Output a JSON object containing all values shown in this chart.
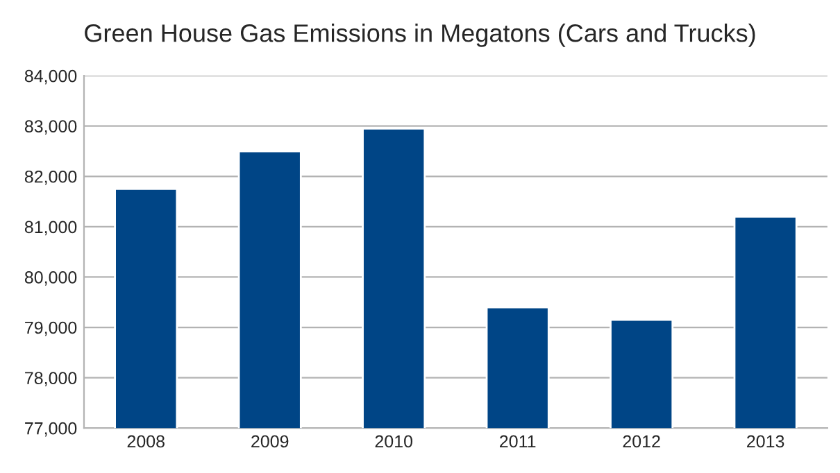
{
  "chart_data": {
    "type": "bar",
    "title": "Green House Gas Emissions in Megatons (Cars and Trucks)",
    "categories": [
      "2008",
      "2009",
      "2010",
      "2011",
      "2012",
      "2013"
    ],
    "values": [
      81750,
      82500,
      82950,
      79400,
      79150,
      81200
    ],
    "color": "#004586",
    "ylim": [
      77000,
      84000
    ],
    "yticks": [
      {
        "value": 77000,
        "label": "77,000"
      },
      {
        "value": 78000,
        "label": "78,000"
      },
      {
        "value": 79000,
        "label": "79,000"
      },
      {
        "value": 80000,
        "label": "80,000"
      },
      {
        "value": 81000,
        "label": "81,000"
      },
      {
        "value": 82000,
        "label": "82,000"
      },
      {
        "value": 83000,
        "label": "83,000"
      },
      {
        "value": 84000,
        "label": "84,000"
      }
    ],
    "grid": "y",
    "legend": false
  }
}
